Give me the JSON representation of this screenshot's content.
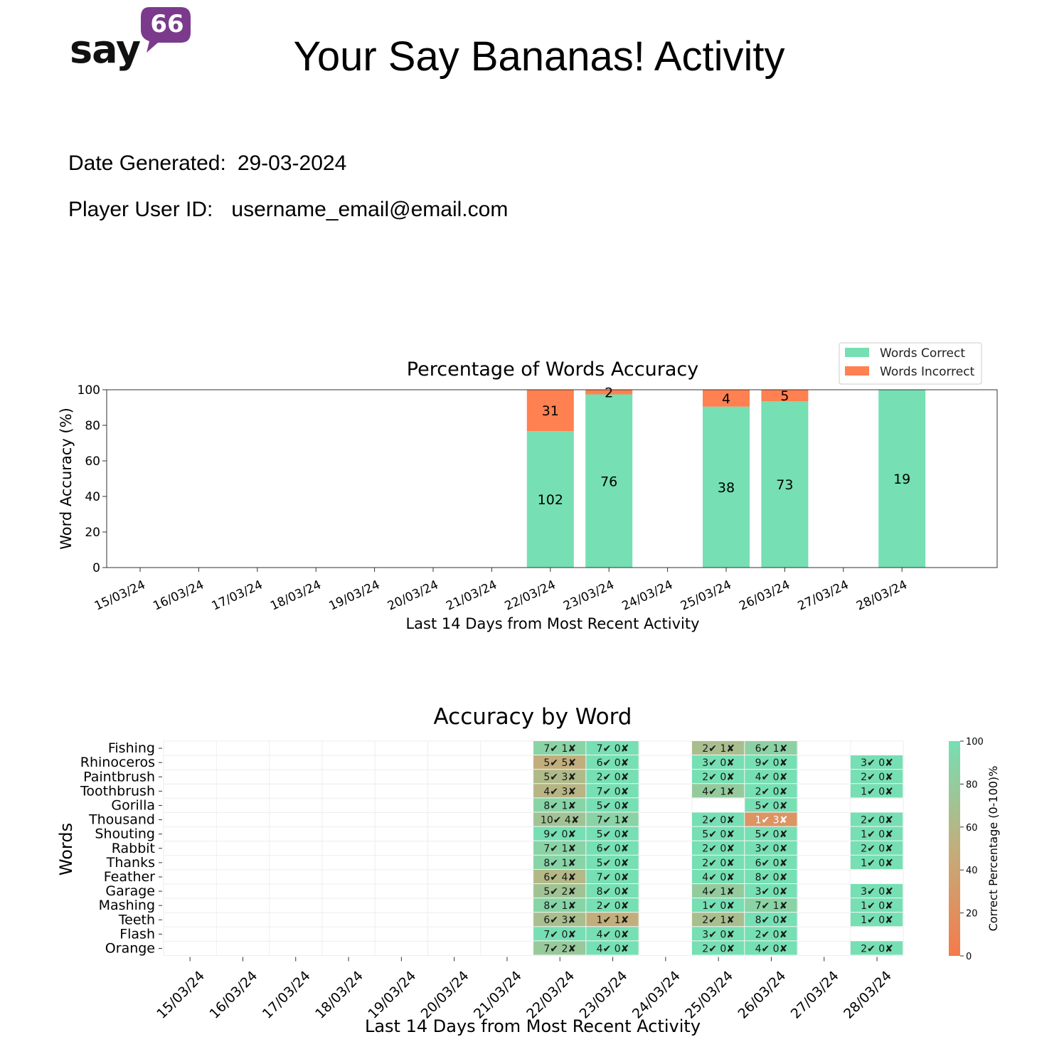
{
  "header": {
    "logo_word": "say",
    "logo_badge": "66",
    "title": "Your Say Bananas! Activity"
  },
  "meta": {
    "date_label": "Date Generated:",
    "date_value": "29-03-2024",
    "user_label": "Player User ID:",
    "user_value": "username_email@email.com"
  },
  "colors": {
    "correct": "#76DFB3",
    "incorrect": "#FF8050",
    "brand": "#7B3A8C"
  },
  "chart_data": [
    {
      "type": "bar",
      "stacked": true,
      "title": "Percentage of Words Accuracy",
      "xlabel": "Last 14 Days from Most Recent Activity",
      "ylabel": "Word Accuracy (%)",
      "ylim": [
        0,
        100
      ],
      "yticks": [
        0,
        20,
        40,
        60,
        80,
        100
      ],
      "legend_position": "top-right",
      "categories": [
        "15/03/24",
        "16/03/24",
        "17/03/24",
        "18/03/24",
        "19/03/24",
        "20/03/24",
        "21/03/24",
        "22/03/24",
        "23/03/24",
        "24/03/24",
        "25/03/24",
        "26/03/24",
        "27/03/24",
        "28/03/24"
      ],
      "series": [
        {
          "name": "Words Correct",
          "color": "#76DFB3",
          "percent": [
            0,
            0,
            0,
            0,
            0,
            0,
            0,
            76.7,
            97.4,
            0,
            90.5,
            93.6,
            0,
            100
          ],
          "labels": [
            null,
            null,
            null,
            null,
            null,
            null,
            null,
            102,
            76,
            null,
            38,
            73,
            null,
            19
          ]
        },
        {
          "name": "Words Incorrect",
          "color": "#FF8050",
          "percent": [
            0,
            0,
            0,
            0,
            0,
            0,
            0,
            23.3,
            2.6,
            0,
            9.5,
            6.4,
            0,
            0
          ],
          "labels": [
            null,
            null,
            null,
            null,
            null,
            null,
            null,
            31,
            2,
            null,
            4,
            5,
            null,
            null
          ]
        }
      ]
    },
    {
      "type": "heatmap",
      "title": "Accuracy by Word",
      "xlabel": "Last 14 Days from Most Recent Activity",
      "ylabel": "Words",
      "colorbar_label": "Correct Percentage (0-100)%",
      "colorbar_ticks": [
        0,
        20,
        40,
        60,
        80,
        100
      ],
      "color_low": "#F57A4A",
      "color_high": "#76DFB3",
      "columns": [
        "15/03/24",
        "16/03/24",
        "17/03/24",
        "18/03/24",
        "19/03/24",
        "20/03/24",
        "21/03/24",
        "22/03/24",
        "23/03/24",
        "24/03/24",
        "25/03/24",
        "26/03/24",
        "27/03/24",
        "28/03/24"
      ],
      "rows": [
        "Fishing",
        "Rhinoceros",
        "Paintbrush",
        "Toothbrush",
        "Gorilla",
        "Thousand",
        "Shouting",
        "Rabbit",
        "Thanks",
        "Feather",
        "Garage",
        "Mashing",
        "Teeth",
        "Flash",
        "Orange"
      ],
      "correct_mark": "✔",
      "incorrect_mark": "✘",
      "cells": [
        [
          null,
          null,
          null,
          null,
          null,
          null,
          null,
          [
            7,
            1
          ],
          [
            7,
            0
          ],
          null,
          [
            2,
            1
          ],
          [
            6,
            1
          ],
          null,
          null
        ],
        [
          null,
          null,
          null,
          null,
          null,
          null,
          null,
          [
            5,
            5
          ],
          [
            6,
            0
          ],
          null,
          [
            3,
            0
          ],
          [
            9,
            0
          ],
          null,
          [
            3,
            0
          ]
        ],
        [
          null,
          null,
          null,
          null,
          null,
          null,
          null,
          [
            5,
            3
          ],
          [
            2,
            0
          ],
          null,
          [
            2,
            0
          ],
          [
            4,
            0
          ],
          null,
          [
            2,
            0
          ]
        ],
        [
          null,
          null,
          null,
          null,
          null,
          null,
          null,
          [
            4,
            3
          ],
          [
            7,
            0
          ],
          null,
          [
            4,
            1
          ],
          [
            2,
            0
          ],
          null,
          [
            1,
            0
          ]
        ],
        [
          null,
          null,
          null,
          null,
          null,
          null,
          null,
          [
            8,
            1
          ],
          [
            5,
            0
          ],
          null,
          null,
          [
            5,
            0
          ],
          null,
          null
        ],
        [
          null,
          null,
          null,
          null,
          null,
          null,
          null,
          [
            10,
            4
          ],
          [
            7,
            1
          ],
          null,
          [
            2,
            0
          ],
          [
            1,
            3
          ],
          null,
          [
            2,
            0
          ]
        ],
        [
          null,
          null,
          null,
          null,
          null,
          null,
          null,
          [
            9,
            0
          ],
          [
            5,
            0
          ],
          null,
          [
            5,
            0
          ],
          [
            5,
            0
          ],
          null,
          [
            1,
            0
          ]
        ],
        [
          null,
          null,
          null,
          null,
          null,
          null,
          null,
          [
            7,
            1
          ],
          [
            6,
            0
          ],
          null,
          [
            2,
            0
          ],
          [
            3,
            0
          ],
          null,
          [
            2,
            0
          ]
        ],
        [
          null,
          null,
          null,
          null,
          null,
          null,
          null,
          [
            8,
            1
          ],
          [
            5,
            0
          ],
          null,
          [
            2,
            0
          ],
          [
            6,
            0
          ],
          null,
          [
            1,
            0
          ]
        ],
        [
          null,
          null,
          null,
          null,
          null,
          null,
          null,
          [
            6,
            4
          ],
          [
            7,
            0
          ],
          null,
          [
            4,
            0
          ],
          [
            8,
            0
          ],
          null,
          null
        ],
        [
          null,
          null,
          null,
          null,
          null,
          null,
          null,
          [
            5,
            2
          ],
          [
            8,
            0
          ],
          null,
          [
            4,
            1
          ],
          [
            3,
            0
          ],
          null,
          [
            3,
            0
          ]
        ],
        [
          null,
          null,
          null,
          null,
          null,
          null,
          null,
          [
            8,
            1
          ],
          [
            2,
            0
          ],
          null,
          [
            1,
            0
          ],
          [
            7,
            1
          ],
          null,
          [
            1,
            0
          ]
        ],
        [
          null,
          null,
          null,
          null,
          null,
          null,
          null,
          [
            6,
            3
          ],
          [
            1,
            1
          ],
          null,
          [
            2,
            1
          ],
          [
            8,
            0
          ],
          null,
          [
            1,
            0
          ]
        ],
        [
          null,
          null,
          null,
          null,
          null,
          null,
          null,
          [
            7,
            0
          ],
          [
            4,
            0
          ],
          null,
          [
            3,
            0
          ],
          [
            2,
            0
          ],
          null,
          null
        ],
        [
          null,
          null,
          null,
          null,
          null,
          null,
          null,
          [
            7,
            2
          ],
          [
            4,
            0
          ],
          null,
          [
            2,
            0
          ],
          [
            4,
            0
          ],
          null,
          [
            2,
            0
          ]
        ]
      ]
    }
  ]
}
